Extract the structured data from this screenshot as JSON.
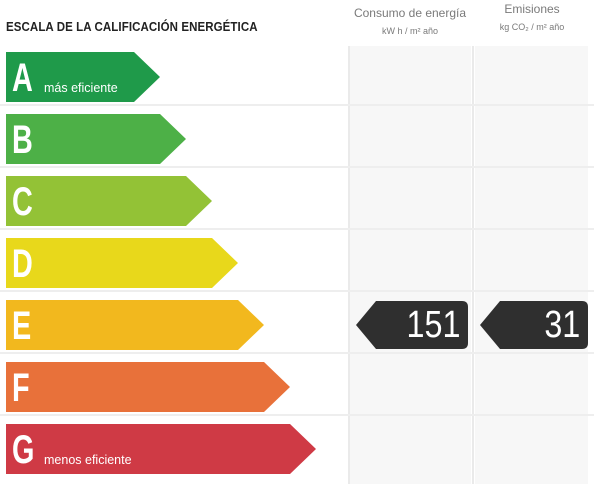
{
  "header": {
    "title": "ESCALA DE LA CALIFICACIÓN ENERGÉTICA",
    "energy_column": {
      "label": "Consumo de energía",
      "unit": "kW h / m² año"
    },
    "emissions_column": {
      "label": "Emisiones",
      "unit": "kg CO₂ / m² año"
    }
  },
  "scale": [
    {
      "letter": "A",
      "caption": "más eficiente",
      "color": "#1f9a4a"
    },
    {
      "letter": "B",
      "caption": "",
      "color": "#4db047"
    },
    {
      "letter": "C",
      "caption": "",
      "color": "#93c236"
    },
    {
      "letter": "D",
      "caption": "",
      "color": "#e8d81b"
    },
    {
      "letter": "E",
      "caption": "",
      "color": "#f2b81e"
    },
    {
      "letter": "F",
      "caption": "",
      "color": "#e8713a"
    },
    {
      "letter": "G",
      "caption": "menos eficiente",
      "color": "#cf3a45"
    }
  ],
  "rating": {
    "class": "E",
    "energy_value": "151",
    "emissions_value": "31",
    "badge_color": "#2f2f2f"
  }
}
